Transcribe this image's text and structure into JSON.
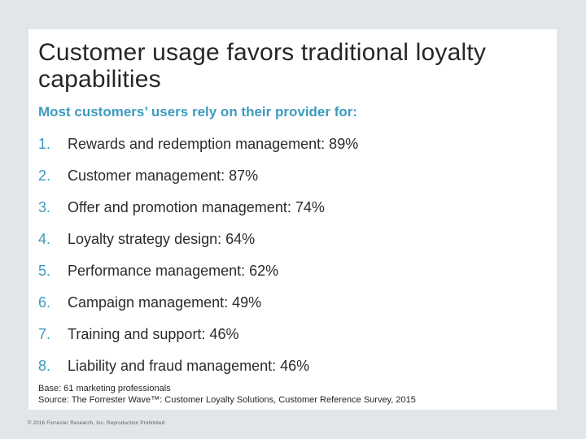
{
  "title": "Customer usage favors traditional loyalty capabilities",
  "subtitle": "Most customers’ users rely on their provider for:",
  "items": [
    {
      "number": "1.",
      "text": "Rewards and redemption management: 89%"
    },
    {
      "number": "2.",
      "text": "Customer management: 87%"
    },
    {
      "number": "3.",
      "text": "Offer and promotion management: 74%"
    },
    {
      "number": "4.",
      "text": "Loyalty strategy design: 64%"
    },
    {
      "number": "5.",
      "text": "Performance management: 62%"
    },
    {
      "number": "6.",
      "text": "Campaign management: 49%"
    },
    {
      "number": "7.",
      "text": "Training and support: 46%"
    },
    {
      "number": "8.",
      "text": "Liability and fraud management: 46%"
    }
  ],
  "footnote": {
    "base": "Base: 61 marketing professionals",
    "source": "Source: The Forrester Wave™: Customer Loyalty Solutions, Customer Reference Survey, 2015"
  },
  "copyright": "© 2016 Forrester Research, Inc. Reproduction Prohibited",
  "colors": {
    "accent": "#3d9bbf",
    "text": "#262626",
    "page_background": "#e3e6e9",
    "slide_background": "#ffffff"
  }
}
